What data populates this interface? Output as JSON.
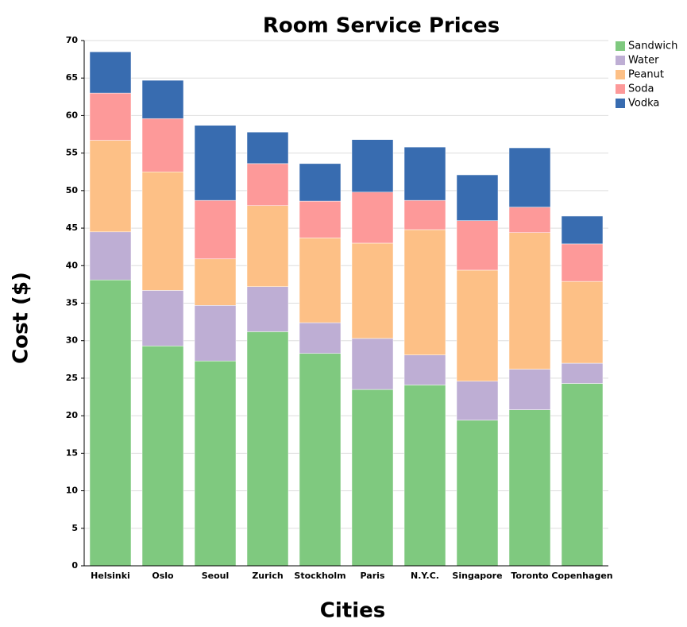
{
  "chart_data": {
    "type": "stacked-bar",
    "title": "Room Service Prices",
    "xlabel": "Cities",
    "ylabel": "Cost ($)",
    "categories": [
      "Helsinki",
      "Oslo",
      "Seoul",
      "Zurich",
      "Stockholm",
      "Paris",
      "N.Y.C.",
      "Singapore",
      "Toronto",
      "Copenhagen"
    ],
    "series": [
      {
        "name": "Sandwich",
        "color": "#7fc97f",
        "values": [
          38.1,
          29.3,
          27.3,
          31.2,
          28.3,
          23.5,
          24.1,
          19.4,
          20.8,
          24.3
        ]
      },
      {
        "name": "Water",
        "color": "#beaed4",
        "values": [
          6.4,
          7.4,
          7.4,
          6.0,
          4.1,
          6.8,
          4.0,
          5.2,
          5.4,
          2.7
        ]
      },
      {
        "name": "Peanut",
        "color": "#fdc086",
        "values": [
          12.2,
          15.8,
          6.2,
          10.8,
          11.3,
          12.7,
          16.7,
          14.8,
          18.2,
          10.9
        ]
      },
      {
        "name": "Soda",
        "color": "#fd9999",
        "values": [
          6.3,
          7.1,
          7.8,
          5.6,
          4.9,
          6.8,
          3.9,
          6.6,
          3.4,
          5.0
        ]
      },
      {
        "name": "Vodka",
        "color": "#386cb0",
        "values": [
          5.5,
          5.1,
          10.0,
          4.2,
          5.0,
          7.0,
          7.1,
          6.1,
          7.9,
          3.7
        ]
      }
    ],
    "ylim": [
      0,
      70
    ],
    "yticks": [
      0,
      5,
      10,
      15,
      20,
      25,
      30,
      35,
      40,
      45,
      50,
      55,
      60,
      65,
      70
    ],
    "grid": true,
    "legend": "upper right"
  }
}
